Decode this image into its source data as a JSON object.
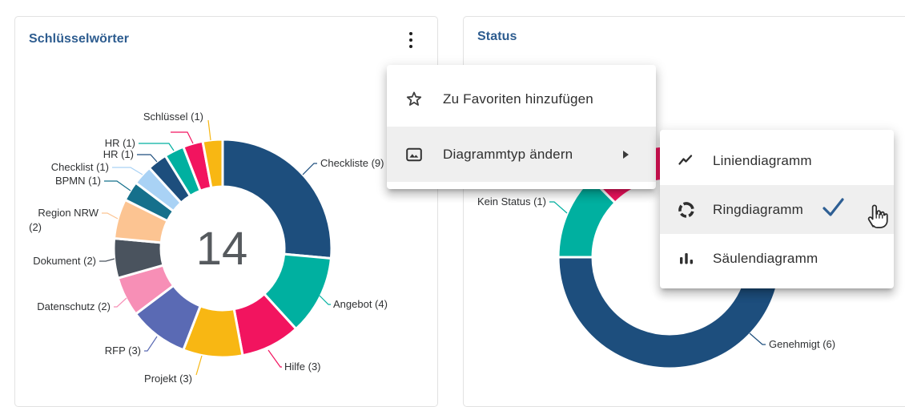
{
  "window": {
    "background": "#ffffff"
  },
  "cards": {
    "keywords": {
      "title": "Schlüsselwörter",
      "title_color": "#2d5c8f"
    },
    "status": {
      "title": "Status",
      "title_color": "#2d5c8f"
    }
  },
  "context_menu": {
    "items": [
      {
        "label": "Zu Favoriten hinzufügen",
        "icon": "star-outline-icon",
        "has_submenu": false,
        "highlighted": false
      },
      {
        "label": "Diagrammtyp ändern",
        "icon": "image-icon",
        "has_submenu": true,
        "highlighted": true
      }
    ]
  },
  "submenu": {
    "items": [
      {
        "label": "Liniendiagramm",
        "icon": "line-chart-icon",
        "selected": false,
        "highlighted": false
      },
      {
        "label": "Ringdiagramm",
        "icon": "donut-chart-icon",
        "selected": true,
        "highlighted": true
      },
      {
        "label": "Säulendiagramm",
        "icon": "bar-chart-icon",
        "selected": false,
        "highlighted": false
      }
    ],
    "checkmark_color": "#2e5f94"
  },
  "chart_data": [
    {
      "type": "pie",
      "subtype": "donut",
      "title": "Schlüsselwörter",
      "center_label": "14",
      "label_format": "name (value)",
      "slices": [
        {
          "name": "Checkliste",
          "value": 9,
          "color": "#1d4e7d"
        },
        {
          "name": "Angebot",
          "value": 4,
          "color": "#00b0a0"
        },
        {
          "name": "Hilfe",
          "value": 3,
          "color": "#f2145f"
        },
        {
          "name": "Projekt",
          "value": 3,
          "color": "#f8b713"
        },
        {
          "name": "RFP",
          "value": 3,
          "color": "#5a6ab4"
        },
        {
          "name": "Datenschutz",
          "value": 2,
          "color": "#f78fb6"
        },
        {
          "name": "Dokument",
          "value": 2,
          "color": "#4a535e"
        },
        {
          "name": "Region NRW",
          "value": 2,
          "color": "#fcc492"
        },
        {
          "name": "BPMN",
          "value": 1,
          "color": "#15708c"
        },
        {
          "name": "Checklist",
          "value": 1,
          "color": "#a9d2f5"
        },
        {
          "name": "HR",
          "value": 1,
          "color": "#1d4e7d"
        },
        {
          "name": "HR",
          "value": 1,
          "color": "#00b0a0"
        },
        {
          "name": "",
          "value": 1,
          "color": "#f2145f",
          "label_visible": false
        },
        {
          "name": "Schlüssel",
          "value": 1,
          "color": "#f8b713"
        }
      ]
    },
    {
      "type": "pie",
      "subtype": "donut",
      "title": "Status",
      "label_format": "name (value)",
      "slices": [
        {
          "name": "Genehmigt",
          "value": 6,
          "color": "#1d4e7d"
        },
        {
          "name": "Kein Status",
          "value": 1,
          "color": "#00b0a0"
        },
        {
          "name": "",
          "value": 1,
          "color": "#f2145f",
          "label_visible": false
        }
      ]
    }
  ]
}
